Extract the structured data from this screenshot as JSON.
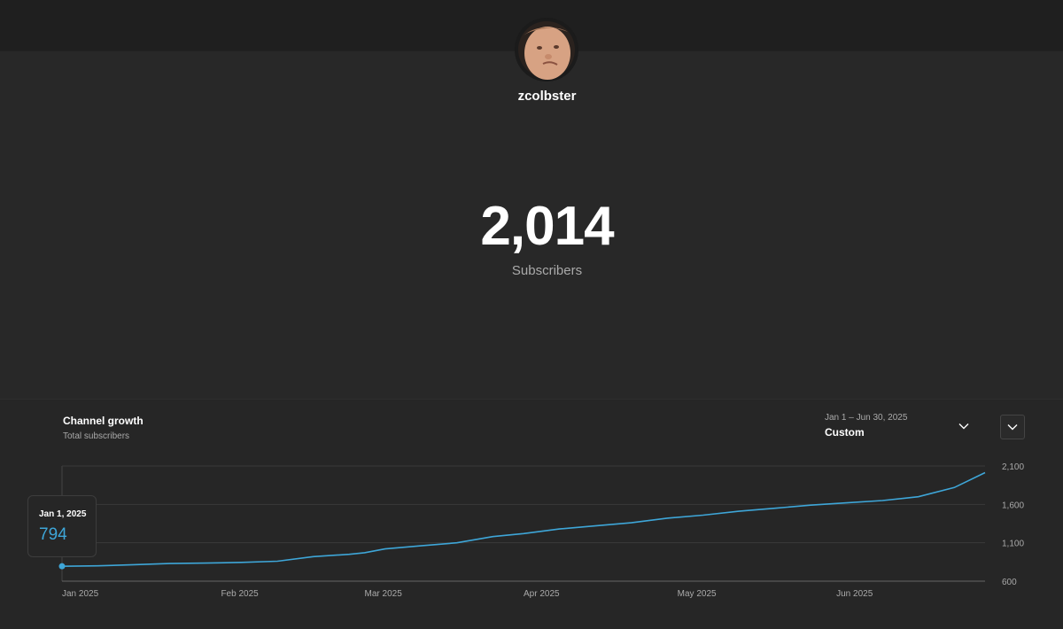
{
  "header": {
    "channel_name": "zcolbster",
    "avatar_icon": "profile-photo"
  },
  "realtime": {
    "subscriber_count": "2,014",
    "subscriber_label": "Subscribers"
  },
  "growth_card": {
    "title": "Channel growth",
    "subtitle": "Total subscribers",
    "date_range": "Jan 1 – Jun 30, 2025",
    "range_label": "Custom",
    "range_icon": "chevron-down-icon",
    "expand_icon": "chevron-down-icon"
  },
  "tooltip": {
    "date": "Jan 1, 2025",
    "value": "794"
  },
  "colors": {
    "line": "#3ea6d8",
    "background": "#282828",
    "gridline": "#3a3a3a"
  },
  "chart_data": {
    "type": "line",
    "title": "Channel growth",
    "subtitle": "Total subscribers",
    "x_tick_labels": [
      "Jan 2025",
      "Feb 2025",
      "Mar 2025",
      "Apr 2025",
      "May 2025",
      "Jun 2025"
    ],
    "y_tick_labels": [
      "2,100",
      "1,600",
      "1,100",
      "600"
    ],
    "ylim": [
      600,
      2100
    ],
    "grid": true,
    "x": [
      "2025-01-01",
      "2025-01-08",
      "2025-01-15",
      "2025-01-22",
      "2025-01-29",
      "2025-02-05",
      "2025-02-12",
      "2025-02-19",
      "2025-02-26",
      "2025-03-01",
      "2025-03-05",
      "2025-03-12",
      "2025-03-19",
      "2025-03-26",
      "2025-04-01",
      "2025-04-08",
      "2025-04-15",
      "2025-04-22",
      "2025-04-29",
      "2025-05-06",
      "2025-05-13",
      "2025-05-20",
      "2025-05-27",
      "2025-06-03",
      "2025-06-10",
      "2025-06-17",
      "2025-06-24",
      "2025-06-30"
    ],
    "y": [
      794,
      800,
      815,
      830,
      835,
      845,
      860,
      920,
      950,
      970,
      1020,
      1060,
      1100,
      1180,
      1220,
      1280,
      1320,
      1360,
      1420,
      1460,
      1510,
      1550,
      1590,
      1620,
      1650,
      1700,
      1820,
      2014
    ]
  }
}
